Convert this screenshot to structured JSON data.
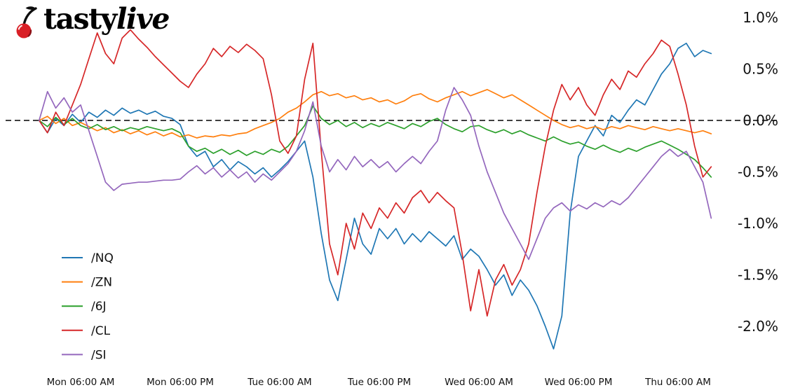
{
  "logo": {
    "brand_tasty": "tasty",
    "brand_live": "live",
    "cherry_color": "#d91f26",
    "stem_color": "#0d0d0d"
  },
  "chart_data": {
    "type": "line",
    "title": "",
    "x_unit": "hours since Monday 12:00 AM",
    "x": [
      1,
      2,
      3,
      4,
      5,
      6,
      7,
      8,
      9,
      10,
      11,
      12,
      13,
      14,
      15,
      16,
      17,
      18,
      19,
      20,
      21,
      22,
      23,
      24,
      25,
      26,
      27,
      28,
      29,
      30,
      31,
      32,
      33,
      34,
      35,
      36,
      37,
      38,
      39,
      40,
      41,
      42,
      43,
      44,
      45,
      46,
      47,
      48,
      49,
      50,
      51,
      52,
      53,
      54,
      55,
      56,
      57,
      58,
      59,
      60,
      61,
      62,
      63,
      64,
      65,
      66,
      67,
      68,
      69,
      70,
      71,
      72,
      73,
      74,
      75,
      76,
      77,
      78,
      79,
      80,
      81,
      82
    ],
    "x_tick_hours": [
      6,
      18,
      30,
      42,
      54,
      66,
      78
    ],
    "x_tick_labels": [
      "Mon 06:00 AM",
      "Mon 06:00 PM",
      "Tue 06:00 AM",
      "Tue 06:00 PM",
      "Wed 06:00 AM",
      "Wed 06:00 PM",
      "Thu 06:00 AM"
    ],
    "y_tick_values": [
      1.0,
      0.5,
      0.0,
      -0.5,
      -1.0,
      -1.5,
      -2.0
    ],
    "y_tick_labels": [
      "1.0%",
      "0.5%",
      "0.0%",
      "-0.5%",
      "-1.0%",
      "-1.5%",
      "-2.0%"
    ],
    "ylim": [
      -2.45,
      1.15
    ],
    "grid": false,
    "zero_line": {
      "value": 0.0,
      "style": "dashed",
      "color": "#000000"
    },
    "legend_position": "lower left",
    "series": [
      {
        "name": "/NQ",
        "color": "#1f77b4",
        "values": [
          0.0,
          -0.12,
          0.02,
          -0.05,
          0.06,
          -0.02,
          0.08,
          0.03,
          0.1,
          0.05,
          0.12,
          0.07,
          0.1,
          0.06,
          0.09,
          0.04,
          0.02,
          -0.04,
          -0.25,
          -0.35,
          -0.3,
          -0.45,
          -0.38,
          -0.48,
          -0.4,
          -0.45,
          -0.52,
          -0.46,
          -0.55,
          -0.48,
          -0.4,
          -0.3,
          -0.2,
          -0.55,
          -1.1,
          -1.55,
          -1.75,
          -1.35,
          -0.95,
          -1.2,
          -1.3,
          -1.05,
          -1.15,
          -1.05,
          -1.2,
          -1.1,
          -1.18,
          -1.08,
          -1.15,
          -1.22,
          -1.12,
          -1.35,
          -1.25,
          -1.32,
          -1.45,
          -1.6,
          -1.5,
          -1.7,
          -1.55,
          -1.65,
          -1.8,
          -2.0,
          -2.22,
          -1.9,
          -0.9,
          -0.35,
          -0.2,
          -0.05,
          -0.15,
          0.05,
          -0.02,
          0.1,
          0.2,
          0.15,
          0.3,
          0.45,
          0.55,
          0.7,
          0.75,
          0.62,
          0.68,
          0.65
        ]
      },
      {
        "name": "/ZN",
        "color": "#ff7f0e",
        "values": [
          0.0,
          0.04,
          -0.03,
          0.02,
          -0.05,
          -0.02,
          -0.06,
          -0.1,
          -0.07,
          -0.12,
          -0.09,
          -0.13,
          -0.1,
          -0.14,
          -0.11,
          -0.15,
          -0.12,
          -0.16,
          -0.14,
          -0.17,
          -0.15,
          -0.16,
          -0.14,
          -0.15,
          -0.13,
          -0.12,
          -0.08,
          -0.05,
          -0.02,
          0.02,
          0.08,
          0.12,
          0.18,
          0.25,
          0.28,
          0.24,
          0.26,
          0.22,
          0.24,
          0.2,
          0.22,
          0.18,
          0.2,
          0.16,
          0.19,
          0.24,
          0.26,
          0.21,
          0.18,
          0.22,
          0.25,
          0.28,
          0.24,
          0.27,
          0.3,
          0.26,
          0.22,
          0.25,
          0.2,
          0.15,
          0.1,
          0.05,
          0.0,
          -0.04,
          -0.07,
          -0.05,
          -0.08,
          -0.06,
          -0.09,
          -0.06,
          -0.08,
          -0.05,
          -0.07,
          -0.09,
          -0.06,
          -0.08,
          -0.1,
          -0.08,
          -0.1,
          -0.12,
          -0.1,
          -0.13
        ]
      },
      {
        "name": "/6J",
        "color": "#2ca02c",
        "values": [
          0.0,
          -0.06,
          0.03,
          -0.04,
          0.02,
          -0.05,
          -0.08,
          -0.04,
          -0.09,
          -0.06,
          -0.1,
          -0.07,
          -0.09,
          -0.06,
          -0.08,
          -0.1,
          -0.08,
          -0.12,
          -0.25,
          -0.3,
          -0.27,
          -0.32,
          -0.28,
          -0.33,
          -0.29,
          -0.34,
          -0.3,
          -0.33,
          -0.28,
          -0.31,
          -0.25,
          -0.15,
          -0.05,
          0.14,
          0.02,
          -0.04,
          0.0,
          -0.06,
          -0.02,
          -0.07,
          -0.03,
          -0.06,
          -0.02,
          -0.05,
          -0.08,
          -0.03,
          -0.06,
          -0.01,
          0.02,
          -0.04,
          -0.08,
          -0.11,
          -0.06,
          -0.05,
          -0.09,
          -0.12,
          -0.09,
          -0.13,
          -0.1,
          -0.14,
          -0.17,
          -0.2,
          -0.16,
          -0.2,
          -0.23,
          -0.21,
          -0.25,
          -0.28,
          -0.24,
          -0.28,
          -0.31,
          -0.27,
          -0.3,
          -0.26,
          -0.23,
          -0.2,
          -0.24,
          -0.28,
          -0.33,
          -0.38,
          -0.46,
          -0.55
        ]
      },
      {
        "name": "/CL",
        "color": "#d62728",
        "values": [
          0.0,
          -0.12,
          0.08,
          -0.05,
          0.15,
          0.35,
          0.6,
          0.85,
          0.65,
          0.55,
          0.8,
          0.88,
          0.79,
          0.71,
          0.62,
          0.54,
          0.46,
          0.38,
          0.32,
          0.45,
          0.55,
          0.7,
          0.62,
          0.72,
          0.66,
          0.74,
          0.68,
          0.6,
          0.25,
          -0.2,
          -0.32,
          -0.15,
          0.4,
          0.75,
          -0.3,
          -1.2,
          -1.5,
          -1.0,
          -1.25,
          -0.9,
          -1.05,
          -0.85,
          -0.95,
          -0.8,
          -0.9,
          -0.75,
          -0.68,
          -0.8,
          -0.7,
          -0.78,
          -0.85,
          -1.3,
          -1.85,
          -1.45,
          -1.9,
          -1.55,
          -1.4,
          -1.6,
          -1.45,
          -1.2,
          -0.7,
          -0.25,
          0.1,
          0.35,
          0.2,
          0.32,
          0.15,
          0.05,
          0.25,
          0.4,
          0.3,
          0.48,
          0.42,
          0.55,
          0.65,
          0.78,
          0.72,
          0.45,
          0.15,
          -0.25,
          -0.55,
          -0.45
        ]
      },
      {
        "name": "/SI",
        "color": "#9467bd",
        "values": [
          0.0,
          0.28,
          0.12,
          0.22,
          0.08,
          0.15,
          -0.1,
          -0.35,
          -0.6,
          -0.68,
          -0.62,
          -0.61,
          -0.6,
          -0.6,
          -0.59,
          -0.58,
          -0.58,
          -0.57,
          -0.5,
          -0.44,
          -0.52,
          -0.46,
          -0.55,
          -0.48,
          -0.56,
          -0.5,
          -0.6,
          -0.52,
          -0.58,
          -0.5,
          -0.42,
          -0.3,
          -0.1,
          0.18,
          -0.25,
          -0.5,
          -0.38,
          -0.48,
          -0.35,
          -0.45,
          -0.38,
          -0.46,
          -0.4,
          -0.5,
          -0.42,
          -0.35,
          -0.42,
          -0.3,
          -0.2,
          0.1,
          0.32,
          0.2,
          0.05,
          -0.25,
          -0.5,
          -0.7,
          -0.9,
          -1.05,
          -1.2,
          -1.35,
          -1.15,
          -0.95,
          -0.85,
          -0.8,
          -0.88,
          -0.82,
          -0.86,
          -0.8,
          -0.84,
          -0.78,
          -0.82,
          -0.75,
          -0.65,
          -0.55,
          -0.45,
          -0.35,
          -0.28,
          -0.35,
          -0.3,
          -0.45,
          -0.6,
          -0.95
        ]
      }
    ]
  }
}
